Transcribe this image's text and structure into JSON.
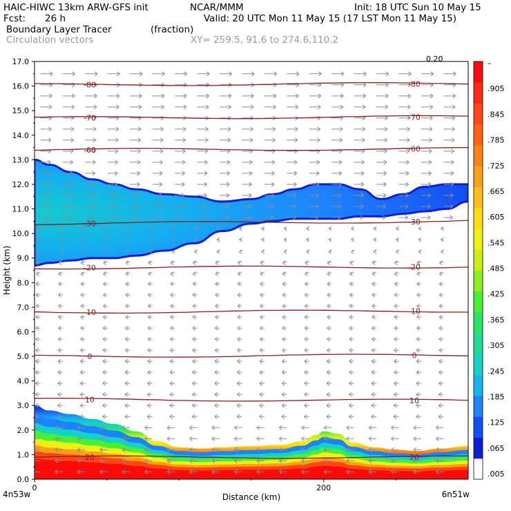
{
  "header": {
    "model": "HAIC-HIWC 13km ARW-GFS init",
    "org": "NCAR/MMM",
    "init": "Init: 18 UTC Sun 10 May 15",
    "fcst_label": "Fcst:",
    "fcst_value": "26 h",
    "valid": "Valid: 20 UTC Mon 11 May 15 (17 LST Mon 11 May 15)",
    "field": "Boundary Layer Tracer",
    "field_unit": "(fraction)",
    "vectors": "Circulation vectors",
    "xy": "XY= 259.5, 91.6 to 274.6,110.2",
    "vector_ref": "0.20"
  },
  "colors": {
    "contour": "#8b1a1a",
    "vector": "#8c8c8c",
    "colorbar": [
      "#ffffff",
      "#0a1ed8",
      "#1450f0",
      "#1e82ff",
      "#14b4f0",
      "#14d2c8",
      "#1edc96",
      "#28e664",
      "#46f032",
      "#8cf01e",
      "#c8f014",
      "#f0f014",
      "#ffdc14",
      "#ffbe14",
      "#ffa014",
      "#ff8214",
      "#ff6414",
      "#ff4614",
      "#ff2814",
      "#ff0a0a"
    ]
  },
  "chart_data": {
    "type": "heatmap",
    "x_axis": {
      "label": "Distance (km)",
      "range": [
        0,
        300
      ],
      "ticks": [
        {
          "v": 0,
          "label": "0"
        },
        {
          "v": 200,
          "label": "200"
        }
      ],
      "left_label": "4n53w",
      "right_label": "6n51w"
    },
    "y_axis": {
      "label": "Height (km)",
      "range": [
        0,
        17
      ],
      "ticks": [
        "0.0",
        "1.0",
        "2.0",
        "3.0",
        "4.0",
        "5.0",
        "6.0",
        "7.0",
        "8.0",
        "9.0",
        "10.0",
        "11.0",
        "12.0",
        "13.0",
        "14.0",
        "15.0",
        "16.0",
        "17.0"
      ]
    },
    "colorbar": {
      "labels": [
        ".005",
        ".065",
        ".125",
        ".185",
        ".245",
        ".305",
        ".365",
        ".425",
        ".485",
        ".545",
        ".605",
        ".665",
        ".725",
        ".785",
        ".845",
        ".905",
        "–"
      ]
    },
    "temperature_contours": [
      {
        "level": 20,
        "label": "20",
        "y_left": 0.9,
        "y_right": 0.9
      },
      {
        "level": 10,
        "label": "10",
        "y_left": 3.25,
        "y_right": 3.2
      },
      {
        "level": 0,
        "label": "0",
        "y_left": 5.0,
        "y_right": 5.05
      },
      {
        "level": -10,
        "label": "-10",
        "y_left": 6.8,
        "y_right": 6.85
      },
      {
        "level": -20,
        "label": "-20",
        "y_left": 8.6,
        "y_right": 8.65
      },
      {
        "level": -30,
        "label": "-30",
        "y_left": 10.4,
        "y_right": 10.5
      },
      {
        "level": -60,
        "label": "-60",
        "y_left": 13.4,
        "y_right": 13.45
      },
      {
        "level": -70,
        "label": "-70",
        "y_left": 14.7,
        "y_right": 14.75
      },
      {
        "level": -80,
        "label": "-80",
        "y_left": 16.05,
        "y_right": 16.1
      }
    ],
    "upper_tracer_band": {
      "x": [
        0,
        10,
        25,
        40,
        55,
        70,
        90,
        110,
        130,
        150,
        165,
        180,
        195,
        210,
        225,
        240,
        255,
        270,
        285,
        300
      ],
      "top": [
        13.0,
        12.8,
        12.5,
        12.2,
        12.0,
        11.8,
        11.6,
        11.5,
        11.3,
        11.4,
        11.6,
        11.8,
        12.0,
        12.0,
        11.8,
        11.4,
        11.6,
        11.9,
        12.0,
        12.0
      ],
      "bottom": [
        8.7,
        8.8,
        8.9,
        9.0,
        9.0,
        9.1,
        9.3,
        9.6,
        10.1,
        10.4,
        10.5,
        10.6,
        10.6,
        10.6,
        10.7,
        10.7,
        10.8,
        10.9,
        11.0,
        11.3
      ]
    },
    "lower_tracer_layer": {
      "x": [
        0,
        10,
        25,
        40,
        55,
        70,
        85,
        100,
        115,
        130,
        150,
        170,
        185,
        195,
        200,
        210,
        220,
        235,
        250,
        265,
        280,
        300
      ],
      "top": [
        3.0,
        2.8,
        2.65,
        2.45,
        2.25,
        1.95,
        1.55,
        1.3,
        1.25,
        1.3,
        1.35,
        1.4,
        1.55,
        1.8,
        1.95,
        1.85,
        1.5,
        1.3,
        1.2,
        1.15,
        1.25,
        1.35
      ]
    },
    "vector_direction": {
      "upper_levels_km": [
        10.5,
        17.0
      ],
      "upper_flow": "eastward",
      "lower_levels_km": [
        0.0,
        10.0
      ],
      "lower_flow": "westward"
    }
  }
}
